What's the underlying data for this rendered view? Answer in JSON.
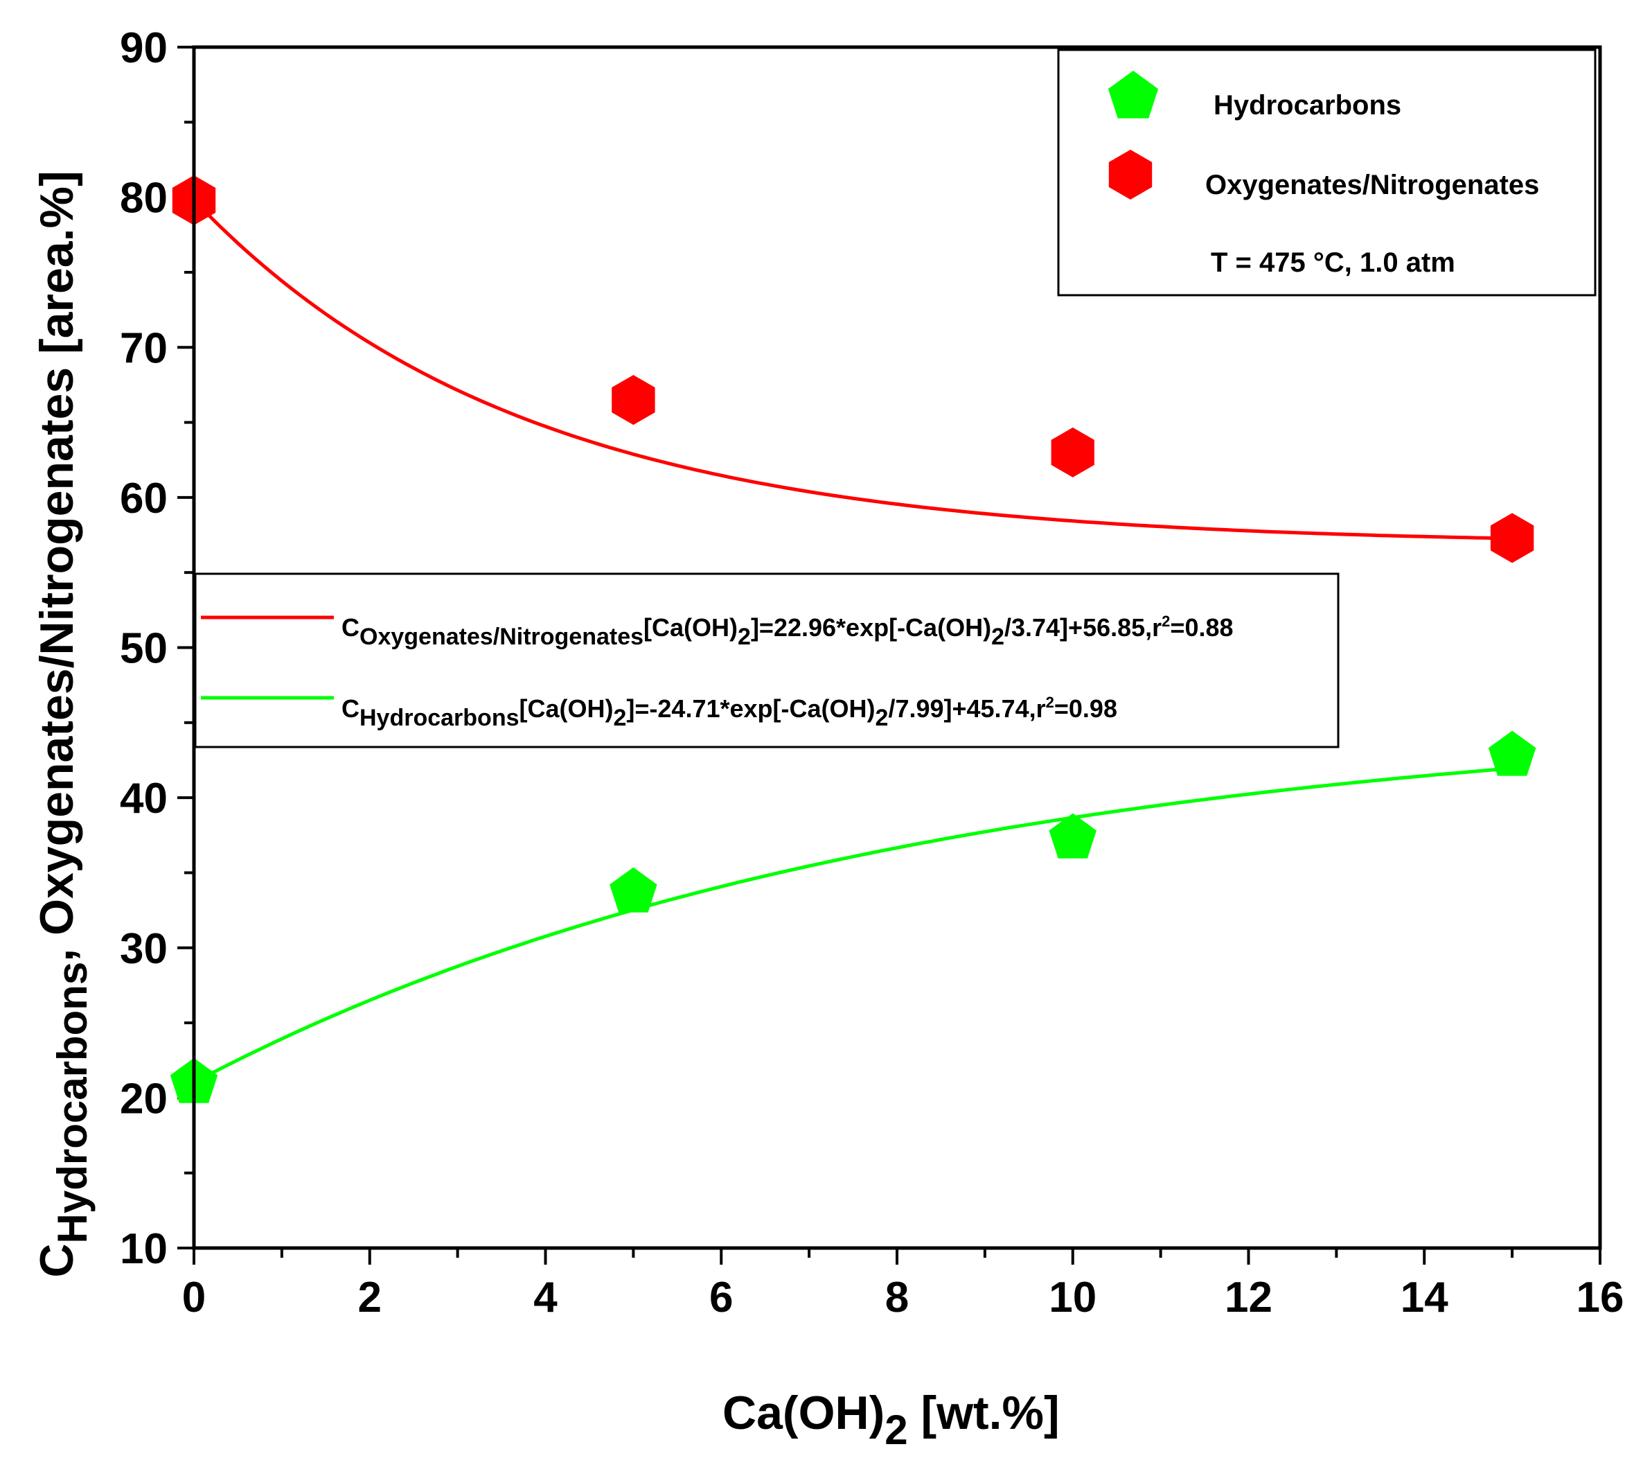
{
  "chart_data": {
    "type": "scatter",
    "xlabel": {
      "main": "Ca(OH)",
      "sub": "2",
      "tail": " [wt.%]"
    },
    "ylabel": {
      "main": "C",
      "sub": "Hydrocarbons",
      "tail": ", Oxygenates/Nitrogenates [area.%]"
    },
    "xlim": [
      0,
      16
    ],
    "ylim": [
      10,
      90
    ],
    "x_ticks": [
      0,
      2,
      4,
      6,
      8,
      10,
      12,
      14,
      16
    ],
    "y_ticks": [
      10,
      20,
      30,
      40,
      50,
      60,
      70,
      80,
      90
    ],
    "series": [
      {
        "name": "Hydrocarbons",
        "color": "#00ff00",
        "marker": "pentagon",
        "x": [
          0,
          5,
          10,
          15
        ],
        "y": [
          21.0,
          33.7,
          37.3,
          42.8
        ]
      },
      {
        "name": "Oxygenates/Nitrogenates",
        "color": "#ff0000",
        "marker": "hexagon",
        "x": [
          0,
          5,
          10,
          15
        ],
        "y": [
          79.8,
          66.5,
          63.0,
          57.3
        ]
      }
    ],
    "fits": [
      {
        "name": "Oxygenates/Nitrogenates fit",
        "color": "#ff0000",
        "A": 22.96,
        "t": 3.74,
        "y0": 56.85,
        "x_range": [
          0,
          15
        ],
        "label": {
          "c": "C",
          "sub": "Oxygenates/Nitrogenates",
          "p1": "[Ca(OH)",
          "s1": "2",
          "p2": "]=22.96*exp[-Ca(OH)",
          "s2": "2",
          "p3": "/3.74]+56.85,r",
          "sup": "2",
          "p4": "=0.88"
        }
      },
      {
        "name": "Hydrocarbons fit",
        "color": "#00ff00",
        "A": -24.71,
        "t": 7.99,
        "y0": 45.74,
        "x_range": [
          0,
          15
        ],
        "label": {
          "c": "C",
          "sub": "Hydrocarbons",
          "p1": "[Ca(OH)",
          "s1": "2",
          "p2": "]=-24.71*exp[-Ca(OH)",
          "s2": "2",
          "p3": "/7.99]+45.74,r",
          "sup": "2",
          "p4": "=0.98"
        }
      }
    ],
    "legend": {
      "position": "top-right",
      "items": [
        "Hydrocarbons",
        "Oxygenates/Nitrogenates"
      ],
      "note": "T = 475 °C, 1.0 atm"
    }
  }
}
